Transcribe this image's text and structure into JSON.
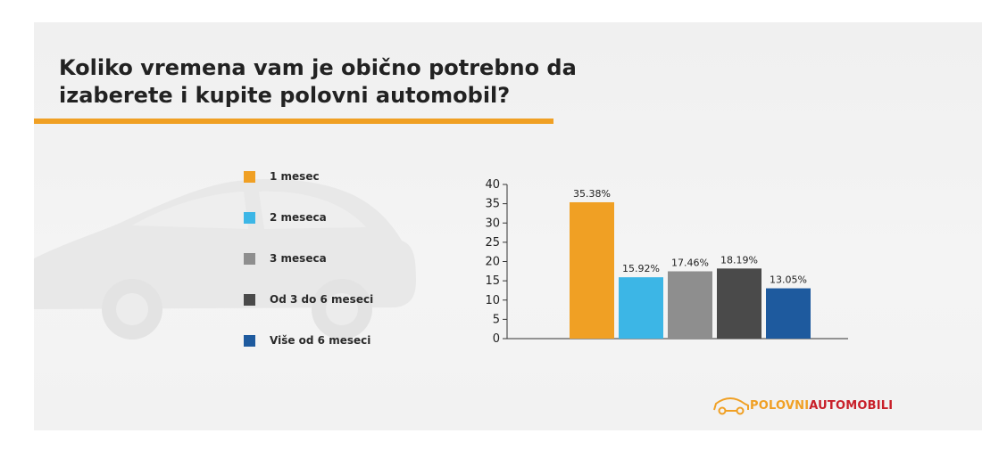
{
  "title_line1": "Koliko vremena vam je obično potrebno da",
  "title_line2": "izaberete i kupite polovni automobil?",
  "brand": {
    "part1": "POLOVNI",
    "part2": "AUTOMOBILI",
    "color1": "#f0a024",
    "color2": "#c8202a"
  },
  "chart_data": {
    "type": "bar",
    "categories": [
      "1 mesec",
      "2 meseca",
      "3 meseca",
      "Od 3 do 6 meseci",
      "Više od 6 meseci"
    ],
    "values": [
      35.38,
      15.92,
      17.46,
      18.19,
      13.05
    ],
    "value_labels": [
      "35.38%",
      "15.92%",
      "17.46%",
      "18.19%",
      "13.05%"
    ],
    "colors": [
      "#f0a024",
      "#3cb6e6",
      "#8e8e8e",
      "#4a4a4a",
      "#1e5a9e"
    ],
    "ylim": [
      0,
      40
    ],
    "yticks": [
      0,
      5,
      10,
      15,
      20,
      25,
      30,
      35,
      40
    ],
    "title": "",
    "xlabel": "",
    "ylabel": "",
    "legend": "left",
    "grid": false
  }
}
